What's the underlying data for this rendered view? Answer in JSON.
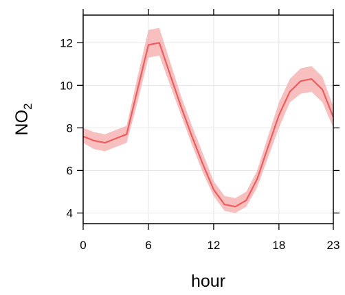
{
  "chart_data": {
    "type": "line",
    "xlabel": "hour",
    "ylabel_main": "NO",
    "ylabel_sub": "2",
    "xlim": [
      0,
      23
    ],
    "ylim": [
      3.5,
      13.3
    ],
    "x_ticks": [
      0,
      6,
      12,
      18,
      23
    ],
    "y_ticks": [
      4,
      6,
      8,
      10,
      12
    ],
    "grid": true,
    "series": [
      {
        "x": [
          0,
          1,
          2,
          3,
          4,
          5,
          6,
          7,
          8,
          9,
          10,
          11,
          12,
          13,
          14,
          15,
          16,
          17,
          18,
          19,
          20,
          21,
          22,
          23
        ],
        "values": [
          7.6,
          7.4,
          7.3,
          7.5,
          7.7,
          9.8,
          11.9,
          12.0,
          10.5,
          9.0,
          7.6,
          6.3,
          5.1,
          4.4,
          4.3,
          4.6,
          5.6,
          7.1,
          8.6,
          9.7,
          10.2,
          10.3,
          9.8,
          8.5
        ],
        "lower": [
          7.3,
          7.0,
          6.9,
          7.1,
          7.3,
          9.2,
          11.3,
          11.4,
          10.0,
          8.6,
          7.2,
          5.9,
          4.8,
          4.1,
          4.0,
          4.3,
          5.2,
          6.6,
          8.0,
          9.2,
          9.6,
          9.7,
          9.2,
          8.0
        ],
        "upper": [
          8.0,
          7.8,
          7.7,
          7.9,
          8.1,
          10.4,
          12.6,
          12.7,
          11.1,
          9.5,
          8.1,
          6.8,
          5.5,
          4.8,
          4.7,
          5.0,
          6.0,
          7.6,
          9.2,
          10.3,
          10.8,
          10.9,
          10.4,
          9.0
        ]
      }
    ],
    "colors": {
      "line": "#f25b5b",
      "band": "#f5a9a9",
      "grid": "#e6e6e6",
      "axis": "#000000"
    }
  }
}
